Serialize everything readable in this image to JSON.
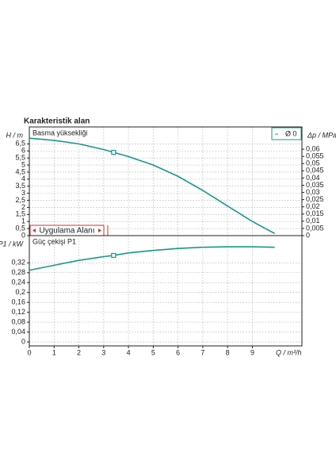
{
  "chart_data": [
    {
      "type": "line",
      "title": "Karakteristik alan",
      "panel_label": "Basma yüksekliği",
      "ylabel": "H / m",
      "y2label": "Δp / MPa",
      "annotation": "Uygulama Alanı",
      "x": [
        0,
        1,
        2,
        3,
        3.4,
        4,
        5,
        6,
        7,
        8,
        9,
        9.9
      ],
      "series": [
        {
          "name": "Ø 0",
          "color": "#17988a",
          "values": [
            6.9,
            6.75,
            6.5,
            6.1,
            5.9,
            5.6,
            5.0,
            4.2,
            3.2,
            2.1,
            1.0,
            0.15
          ]
        }
      ],
      "xlim": [
        0,
        11
      ],
      "ylim": [
        0,
        7.7
      ],
      "yticks": [
        0,
        {
          "value": 0.5,
          "label": "0,5"
        },
        1,
        {
          "value": 1.5,
          "label": "1,5"
        },
        2,
        {
          "value": 2.5,
          "label": "2,5"
        },
        3,
        {
          "value": 3.5,
          "label": "3,5"
        },
        4,
        {
          "value": 4.5,
          "label": "4,5"
        },
        5,
        {
          "value": 5.5,
          "label": "5,5"
        },
        6,
        {
          "value": 6.5,
          "label": "6,5"
        }
      ],
      "y2lim": [
        0,
        0.0755
      ],
      "y2ticks": [
        0,
        {
          "value": 0.005,
          "label": "0,005"
        },
        {
          "value": 0.01,
          "label": "0,01"
        },
        {
          "value": 0.015,
          "label": "0,015"
        },
        {
          "value": 0.02,
          "label": "0,02"
        },
        {
          "value": 0.025,
          "label": "0,025"
        },
        {
          "value": 0.03,
          "label": "0,03"
        },
        {
          "value": 0.035,
          "label": "0,035"
        },
        {
          "value": 0.04,
          "label": "0,04"
        },
        {
          "value": 0.045,
          "label": "0,045"
        },
        {
          "value": 0.05,
          "label": "0,05"
        },
        {
          "value": 0.055,
          "label": "0,055"
        },
        {
          "value": 0.06,
          "label": "0,06"
        }
      ],
      "grid": true
    },
    {
      "type": "line",
      "panel_label": "Güç çekişi P1",
      "ylabel": "P1 / kW",
      "xlabel": "Q / m³/h",
      "x": [
        0,
        1,
        2,
        3,
        3.4,
        4,
        5,
        6,
        7,
        8,
        9,
        9.9
      ],
      "series": [
        {
          "name": "Ø 0",
          "color": "#17988a",
          "values": [
            0.29,
            0.31,
            0.33,
            0.345,
            0.35,
            0.36,
            0.37,
            0.378,
            0.383,
            0.385,
            0.385,
            0.383
          ]
        }
      ],
      "xlim": [
        0,
        11
      ],
      "ylim": [
        -0.016,
        0.43
      ],
      "xticks": [
        0,
        1,
        2,
        3,
        4,
        5,
        6,
        7,
        8,
        9
      ],
      "yticks": [
        0,
        {
          "value": 0.04,
          "label": "0,04"
        },
        {
          "value": 0.08,
          "label": "0,08"
        },
        {
          "value": 0.12,
          "label": "0,12"
        },
        {
          "value": 0.16,
          "label": "0,16"
        },
        {
          "value": 0.2,
          "label": "0,2"
        },
        {
          "value": 0.24,
          "label": "0,24"
        },
        {
          "value": 0.28,
          "label": "0,28"
        },
        {
          "value": 0.32,
          "label": "0,32"
        }
      ],
      "grid": true
    }
  ]
}
